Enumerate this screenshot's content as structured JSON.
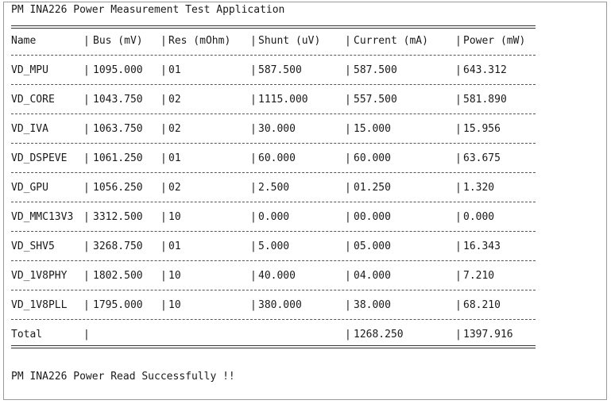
{
  "title": "PM INA226 Power Measurement Test Application",
  "headers": [
    "Name",
    "Bus (mV)",
    "Res (mOhm)",
    "Shunt (uV)",
    "Current (mA)",
    "Power (mW)"
  ],
  "rows": [
    [
      "VD_MPU",
      "1095.000",
      "01",
      "587.500",
      "587.500",
      "643.312"
    ],
    [
      "VD_CORE",
      "1043.750",
      "02",
      "1115.000",
      "557.500",
      "581.890"
    ],
    [
      "VD_IVA",
      "1063.750",
      "02",
      "30.000",
      "15.000",
      "15.956"
    ],
    [
      "VD_DSPEVE",
      "1061.250",
      "01",
      "60.000",
      "60.000",
      "63.675"
    ],
    [
      "VD_GPU",
      "1056.250",
      "02",
      "2.500",
      "01.250",
      "1.320"
    ],
    [
      "VD_MMC13V3",
      "3312.500",
      "10",
      "0.000",
      "00.000",
      "0.000"
    ],
    [
      "VD_SHV5",
      "3268.750",
      "01",
      "5.000",
      "05.000",
      "16.343"
    ],
    [
      "VD_1V8PHY",
      "1802.500",
      "10",
      "40.000",
      "04.000",
      "7.210"
    ],
    [
      "VD_1V8PLL",
      "1795.000",
      "10",
      "380.000",
      "38.000",
      "68.210"
    ]
  ],
  "total": {
    "label": "Total",
    "current": "1268.250",
    "power": "1397.916"
  },
  "footer": "PM INA226 Power Read Successfully !!"
}
